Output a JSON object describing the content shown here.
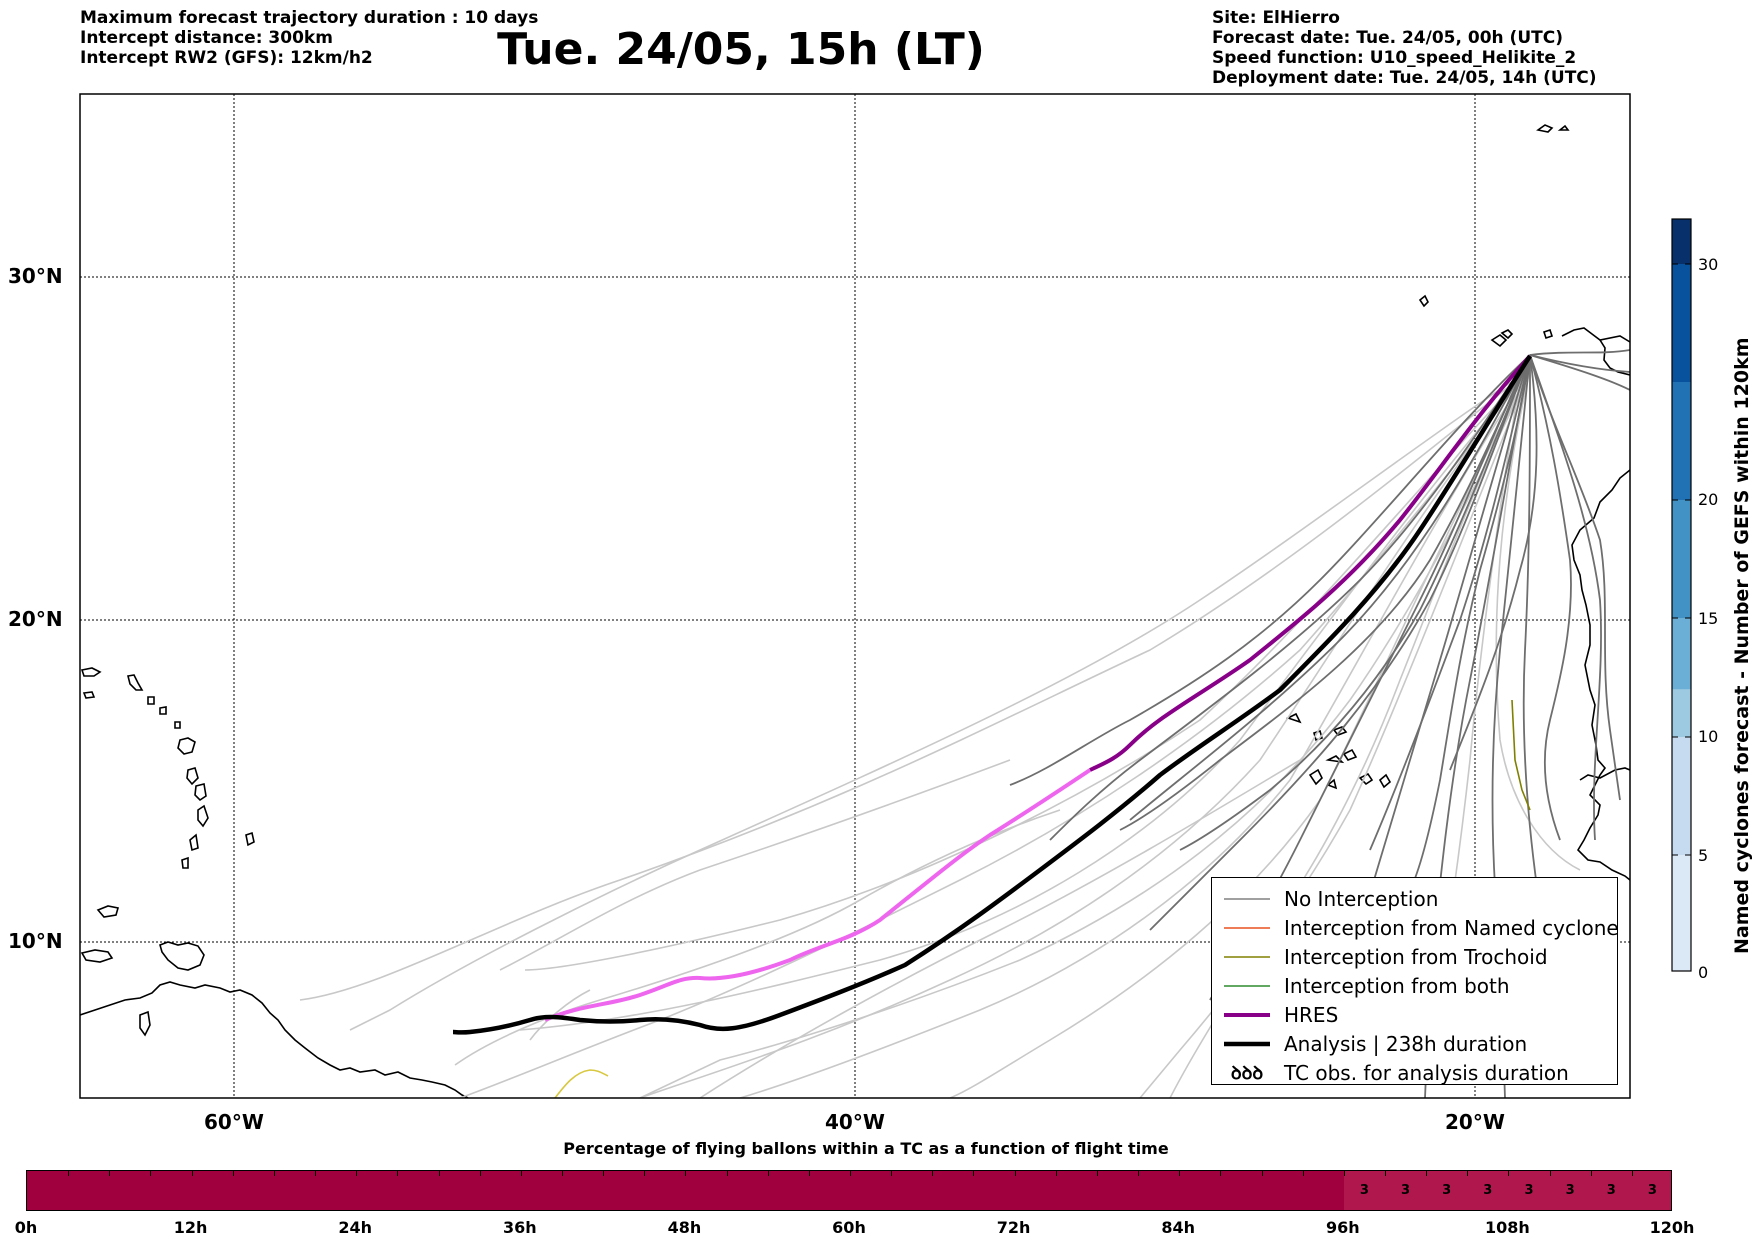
{
  "header_left": [
    "Maximum forecast trajectory duration : 10 days",
    "Intercept distance: 300km",
    "Intercept RW2 (GFS):  12km/h2"
  ],
  "title": "Tue. 24/05, 15h (LT)",
  "header_right": [
    "Site: ElHierro",
    "Forecast date: Tue. 24/05, 00h (UTC)",
    "Speed function: U10_speed_Helikite_2",
    "Deployment date: Tue. 24/05, 14h (UTC)"
  ],
  "map_axes": {
    "lat_labels": [
      "30°N",
      "20°N",
      "10°N"
    ],
    "lon_labels": [
      "60°W",
      "40°W",
      "20°W"
    ]
  },
  "legend": [
    {
      "label": "No Interception",
      "color": "#808080",
      "style": "line-thin"
    },
    {
      "label": "Interception from Named cyclone",
      "color": "#e8501e",
      "style": "line-thin"
    },
    {
      "label": "Interception from Trochoid",
      "color": "#808000",
      "style": "line-thin"
    },
    {
      "label": "Interception from both",
      "color": "#2e8b2e",
      "style": "line-thin"
    },
    {
      "label": "HRES",
      "color": "#880088",
      "style": "line-thick"
    },
    {
      "label": "Analysis | 238h duration",
      "color": "#000000",
      "style": "line-thick"
    },
    {
      "label": "TC obs. for analysis duration",
      "color": "#000000",
      "style": "tc-symbol"
    }
  ],
  "tc_symbol": "ꝺꝺꝺ",
  "colorbar": {
    "label": "Named cyclones forecast - Number of GEFS within 120km",
    "ticks": [
      "0",
      "5",
      "10",
      "15",
      "20",
      "30"
    ],
    "colors": [
      "#dbe8f6",
      "#c6dbef",
      "#9ecae1",
      "#6baed6",
      "#4292c6",
      "#2171b5",
      "#08519c",
      "#08306b"
    ]
  },
  "bottom_bar": {
    "title": "Percentage of flying ballons within a TC as a function of flight time",
    "ticks": [
      "0h",
      "12h",
      "24h",
      "36h",
      "48h",
      "60h",
      "72h",
      "84h",
      "96h",
      "108h",
      "120h"
    ],
    "values": [
      "3",
      "3",
      "3",
      "3",
      "3",
      "3",
      "3",
      "3"
    ]
  }
}
